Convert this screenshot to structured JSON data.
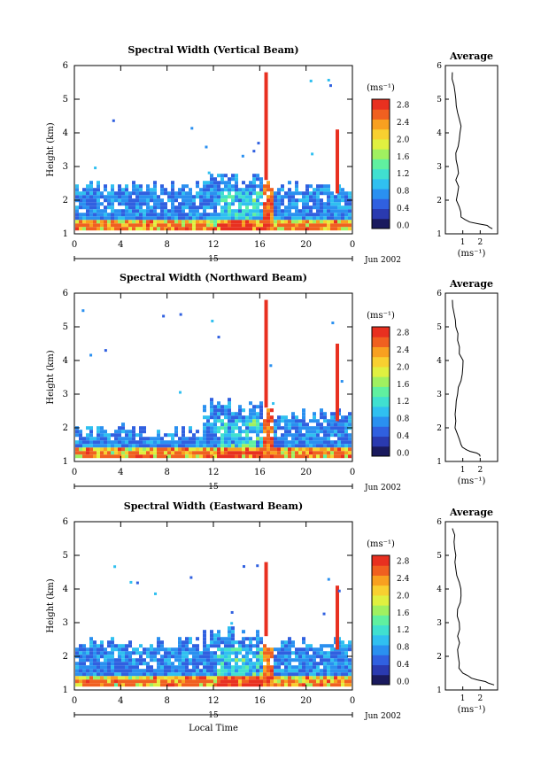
{
  "figure": {
    "xlabel": "Local Time",
    "date_label": "Jun 2002",
    "day_label": "15",
    "colorbar_unit": "(ms⁻¹)",
    "avg_title": "Average",
    "avg_xlabel": "(ms⁻¹)"
  },
  "chart_data": [
    {
      "type": "heatmap",
      "title": "Spectral Width (Vertical Beam)",
      "ylabel": "Height (km)",
      "x_ticks": [
        "0",
        "4",
        "8",
        "12",
        "16",
        "20",
        "0"
      ],
      "y_ticks": [
        "1",
        "2",
        "3",
        "4",
        "5",
        "6"
      ],
      "xlim": [
        0,
        24
      ],
      "ylim": [
        1,
        6
      ],
      "colorbar_ticks": [
        "0.0",
        "0.4",
        "0.8",
        "1.2",
        "1.6",
        "2.0",
        "2.4",
        "2.8"
      ],
      "colorbar_range": [
        0.0,
        3.0
      ],
      "average_profile": {
        "xlim": [
          0,
          3
        ],
        "x_ticks": [
          "1",
          "2"
        ],
        "ylim": [
          1,
          6
        ],
        "y_ticks": [
          "1",
          "2",
          "3",
          "4",
          "5",
          "6"
        ],
        "height": [
          1.15,
          1.25,
          1.35,
          1.5,
          1.8,
          2.2,
          2.6,
          3.0,
          3.4,
          3.8,
          4.2,
          4.6,
          5.0,
          5.4,
          5.8
        ],
        "value": [
          2.7,
          2.4,
          1.4,
          0.9,
          0.8,
          0.7,
          0.6,
          0.7,
          0.6,
          0.8,
          0.9,
          0.7,
          0.6,
          0.5,
          0.4
        ]
      }
    },
    {
      "type": "heatmap",
      "title": "Spectral Width (Northward Beam)",
      "ylabel": "Height (km)",
      "x_ticks": [
        "0",
        "4",
        "8",
        "12",
        "16",
        "20",
        "0"
      ],
      "y_ticks": [
        "1",
        "2",
        "3",
        "4",
        "5",
        "6"
      ],
      "xlim": [
        0,
        24
      ],
      "ylim": [
        1,
        6
      ],
      "colorbar_ticks": [
        "0.0",
        "0.4",
        "0.8",
        "1.2",
        "1.6",
        "2.0",
        "2.4",
        "2.8"
      ],
      "colorbar_range": [
        0.0,
        3.0
      ],
      "average_profile": {
        "xlim": [
          0,
          3
        ],
        "x_ticks": [
          "1",
          "2"
        ],
        "ylim": [
          1,
          6
        ],
        "y_ticks": [
          "1",
          "2",
          "3",
          "4",
          "5",
          "6"
        ],
        "height": [
          1.15,
          1.25,
          1.35,
          1.5,
          1.8,
          2.2,
          2.6,
          3.0,
          3.4,
          3.8,
          4.2,
          4.6,
          5.0,
          5.4,
          5.8
        ],
        "value": [
          2.0,
          1.8,
          1.2,
          0.9,
          0.7,
          0.6,
          0.6,
          0.7,
          0.9,
          1.0,
          0.8,
          0.7,
          0.6,
          0.5,
          0.4
        ]
      }
    },
    {
      "type": "heatmap",
      "title": "Spectral Width (Eastward Beam)",
      "ylabel": "Height (km)",
      "x_ticks": [
        "0",
        "4",
        "8",
        "12",
        "16",
        "20",
        "0"
      ],
      "y_ticks": [
        "1",
        "2",
        "3",
        "4",
        "5",
        "6"
      ],
      "xlim": [
        0,
        24
      ],
      "ylim": [
        1,
        6
      ],
      "colorbar_ticks": [
        "0.0",
        "0.4",
        "0.8",
        "1.2",
        "1.6",
        "2.0",
        "2.4",
        "2.8"
      ],
      "colorbar_range": [
        0.0,
        3.0
      ],
      "average_profile": {
        "xlim": [
          0,
          3
        ],
        "x_ticks": [
          "1",
          "2"
        ],
        "ylim": [
          1,
          6
        ],
        "y_ticks": [
          "1",
          "2",
          "3",
          "4",
          "5",
          "6"
        ],
        "height": [
          1.15,
          1.25,
          1.35,
          1.5,
          1.8,
          2.2,
          2.6,
          3.0,
          3.4,
          3.8,
          4.2,
          4.6,
          5.0,
          5.4,
          5.8
        ],
        "value": [
          2.8,
          2.3,
          1.5,
          1.0,
          0.8,
          0.7,
          0.7,
          0.8,
          0.7,
          0.9,
          0.8,
          0.6,
          0.6,
          0.5,
          0.4
        ]
      }
    }
  ],
  "colors": {
    "colormap": [
      "#1a1a5e",
      "#2a3ab0",
      "#3060e0",
      "#2a90f0",
      "#30c0f0",
      "#40e0d0",
      "#60f0a0",
      "#a0f060",
      "#e0f040",
      "#f8d030",
      "#f8a020",
      "#f06020",
      "#e83020"
    ]
  }
}
